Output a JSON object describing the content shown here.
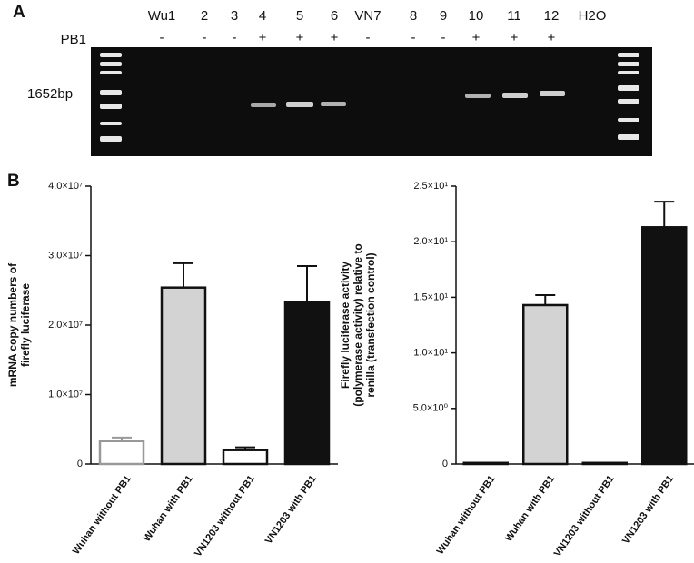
{
  "panel_a": {
    "letter": "A",
    "lanes": [
      "Wu1",
      "2",
      "3",
      "4",
      "5",
      "6",
      "VN7",
      "8",
      "9",
      "10",
      "11",
      "12",
      "H2O"
    ],
    "row_label": "PB1",
    "signs": [
      "-",
      "-",
      "-",
      "+",
      "+",
      "+",
      "-",
      "-",
      "-",
      "+",
      "+",
      "+"
    ],
    "band_label": "1652bp"
  },
  "panel_b": {
    "letter": "B"
  },
  "chart_data": [
    {
      "type": "bar",
      "ylabel": [
        "mRNA copy numbers of",
        "firefly luciferase"
      ],
      "categories": [
        "Wuhan without PB1",
        "Wuhan with PB1",
        "VN1203 without PB1",
        "VN1203 with PB1"
      ],
      "values": [
        3300000,
        25400000,
        2000000,
        23300000
      ],
      "errors": [
        500000,
        3500000,
        400000,
        5200000
      ],
      "colors": [
        "#ffffff",
        "#d3d3d3",
        "#ffffff",
        "#111111"
      ],
      "edgecolors": [
        "#999999",
        "#111111",
        "#111111",
        "#111111"
      ],
      "ylim": [
        0,
        40000000
      ],
      "yticks": [
        0,
        {
          "value": 10000000,
          "label": "1.0×10⁷"
        },
        {
          "value": 20000000,
          "label": "2.0×10⁷"
        },
        {
          "value": 30000000,
          "label": "3.0×10⁷"
        },
        {
          "value": 40000000,
          "label": "4.0×10⁷"
        }
      ]
    },
    {
      "type": "bar",
      "ylabel": [
        "Firefly luciferase activity",
        "(polymerase activity) relative to",
        "renilla (transfection control)"
      ],
      "categories": [
        "Wuhan without PB1",
        "Wuhan with PB1",
        "VN1203 without PB1",
        "VN1203 with PB1"
      ],
      "values": [
        0.1,
        14.3,
        0.1,
        21.3
      ],
      "errors": [
        0,
        0.9,
        0,
        2.3
      ],
      "colors": [
        "#ffffff",
        "#d3d3d3",
        "#ffffff",
        "#111111"
      ],
      "edgecolors": [
        "#111111",
        "#111111",
        "#111111",
        "#111111"
      ],
      "ylim": [
        0,
        25
      ],
      "yticks": [
        0,
        {
          "value": 5,
          "label": "5.0×10⁰"
        },
        {
          "value": 10,
          "label": "1.0×10¹"
        },
        {
          "value": 15,
          "label": "1.5×10¹"
        },
        {
          "value": 20,
          "label": "2.0×10¹"
        },
        {
          "value": 25,
          "label": "2.5×10¹"
        }
      ]
    }
  ]
}
